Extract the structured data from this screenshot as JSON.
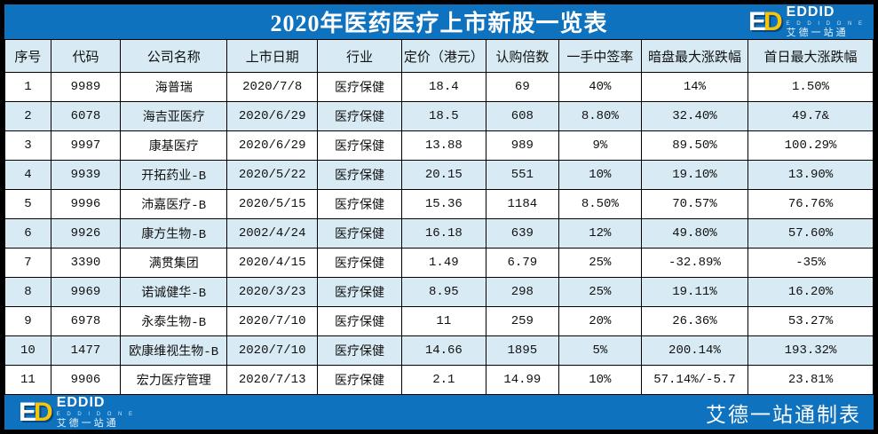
{
  "title": "2020年医药医疗上市新股一览表",
  "logo": {
    "mark_e": "E",
    "mark_d": "D",
    "name": "EDDID",
    "sub": "E D D I D   O N E",
    "cn": "艾德一站通"
  },
  "footer": {
    "credit": "艾德一站通制表"
  },
  "colors": {
    "band_blue": "#0E72BE",
    "row_alt_blue": "#D8EBF4",
    "logo_yellow": "#F6C50A",
    "border_black": "#000000"
  },
  "table": {
    "columns": [
      "序号",
      "代码",
      "公司名称",
      "上市日期",
      "行业",
      "定价（港元）",
      "认购倍数",
      "一手中签率",
      "暗盘最大涨跌幅",
      "首日最大涨跌幅"
    ],
    "rows": [
      [
        "1",
        "9989",
        "海普瑞",
        "2020/7/8",
        "医疗保健",
        "18.4",
        "69",
        "40%",
        "14%",
        "1.50%"
      ],
      [
        "2",
        "6078",
        "海吉亚医疗",
        "2020/6/29",
        "医疗保健",
        "18.5",
        "608",
        "8.80%",
        "32.40%",
        "49.7&"
      ],
      [
        "3",
        "9997",
        "康基医疗",
        "2020/6/29",
        "医疗保健",
        "13.88",
        "989",
        "9%",
        "89.50%",
        "100.29%"
      ],
      [
        "4",
        "9939",
        "开拓药业-B",
        "2020/5/22",
        "医疗保健",
        "20.15",
        "551",
        "10%",
        "19.10%",
        "13.90%"
      ],
      [
        "5",
        "9996",
        "沛嘉医疗-B",
        "2020/5/15",
        "医疗保健",
        "15.36",
        "1184",
        "8.50%",
        "70.57%",
        "76.76%"
      ],
      [
        "6",
        "9926",
        "康方生物-B",
        "2002/4/24",
        "医疗保健",
        "16.18",
        "639",
        "12%",
        "49.80%",
        "57.60%"
      ],
      [
        "7",
        "3390",
        "满贯集团",
        "2020/4/15",
        "医疗保健",
        "1.49",
        "6.79",
        "25%",
        "-32.89%",
        "-35%"
      ],
      [
        "8",
        "9969",
        "诺诚健华-B",
        "2020/3/23",
        "医疗保健",
        "8.95",
        "298",
        "25%",
        "19.11%",
        "16.20%"
      ],
      [
        "9",
        "6978",
        "永泰生物-B",
        "2020/7/10",
        "医疗保健",
        "11",
        "259",
        "20%",
        "26.36%",
        "53.27%"
      ],
      [
        "10",
        "1477",
        "欧康维视生物-B",
        "2020/7/10",
        "医疗保健",
        "14.66",
        "1895",
        "5%",
        "200.14%",
        "193.32%"
      ],
      [
        "11",
        "9906",
        "宏力医疗管理",
        "2020/7/13",
        "医疗保健",
        "2.1",
        "14.99",
        "10%",
        "57.14%/-5.7",
        "23.81%"
      ]
    ]
  }
}
